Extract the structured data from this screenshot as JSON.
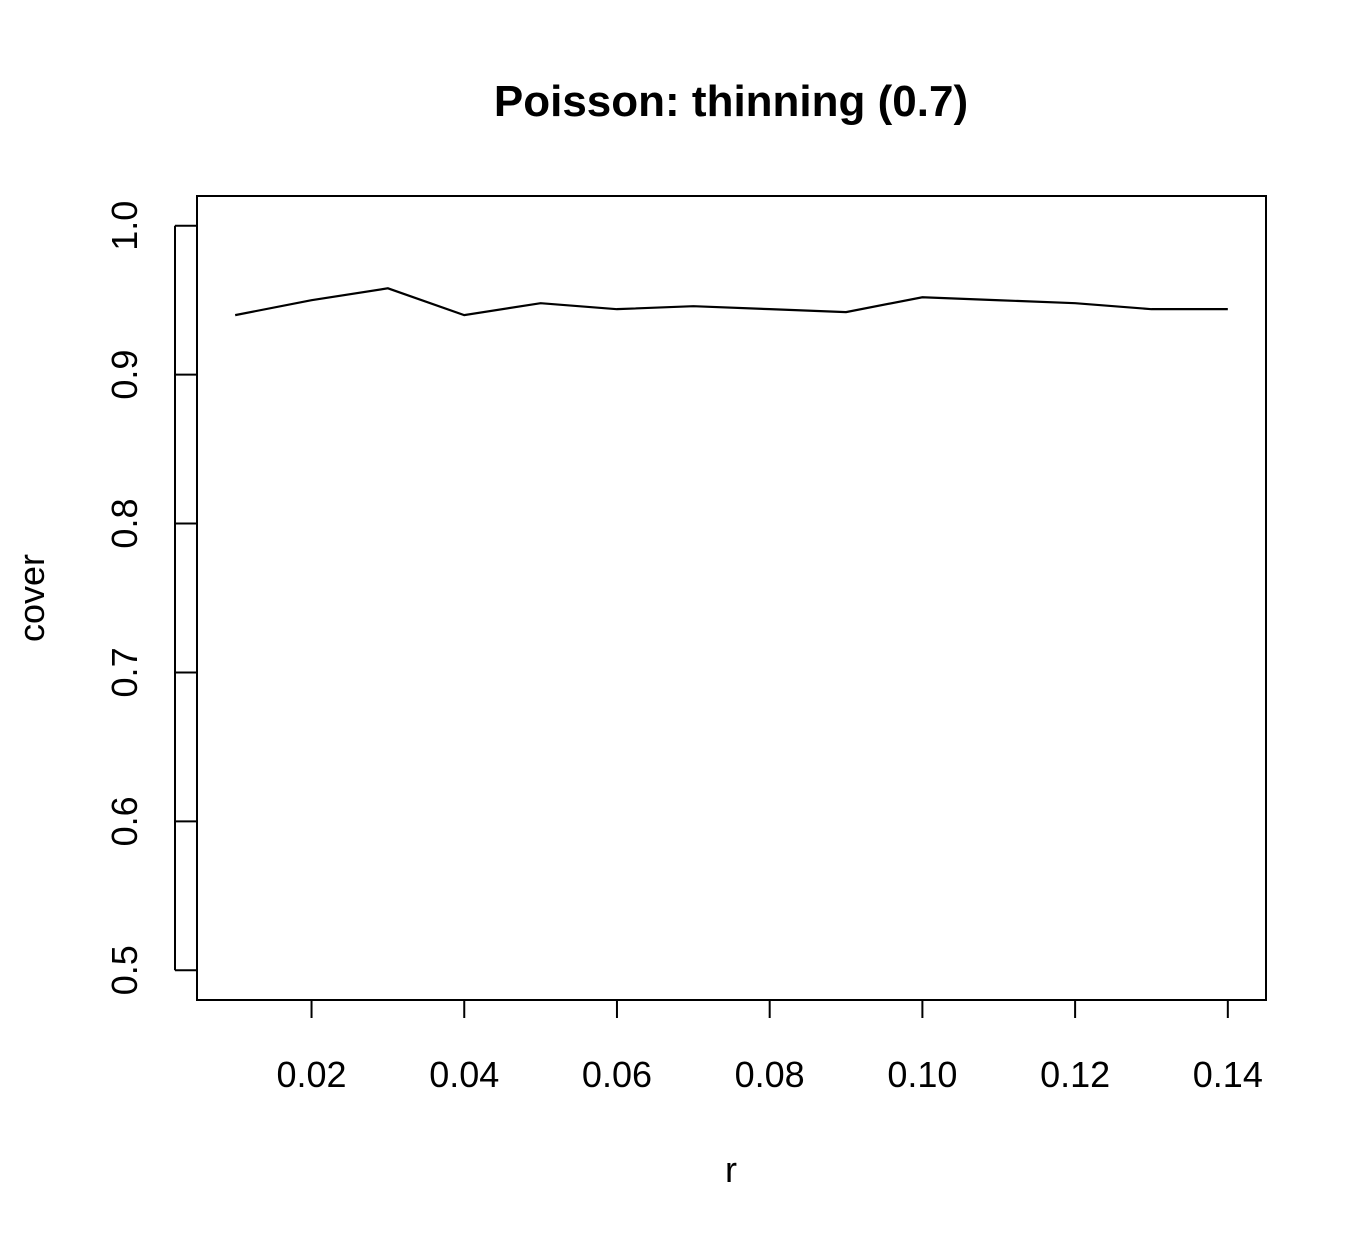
{
  "chart_data": {
    "type": "line",
    "title": "Poisson: thinning (0.7)",
    "xlabel": "r",
    "ylabel": "cover",
    "xlim": [
      0.005,
      0.145
    ],
    "ylim": [
      0.48,
      1.02
    ],
    "x_ticks": [
      0.02,
      0.04,
      0.06,
      0.08,
      0.1,
      0.12,
      0.14
    ],
    "x_tick_labels": [
      "0.02",
      "0.04",
      "0.06",
      "0.08",
      "0.10",
      "0.12",
      "0.14"
    ],
    "y_ticks": [
      0.5,
      0.6,
      0.7,
      0.8,
      0.9,
      1.0
    ],
    "y_tick_labels": [
      "0.5",
      "0.6",
      "0.7",
      "0.8",
      "0.9",
      "1.0"
    ],
    "grid": false,
    "series": [
      {
        "x": [
          0.01,
          0.02,
          0.03,
          0.04,
          0.05,
          0.06,
          0.07,
          0.08,
          0.09,
          0.1,
          0.11,
          0.12,
          0.13,
          0.14
        ],
        "values": [
          0.94,
          0.95,
          0.958,
          0.94,
          0.948,
          0.944,
          0.946,
          0.944,
          0.942,
          0.952,
          0.95,
          0.948,
          0.944,
          0.944
        ],
        "color": "#000000"
      }
    ]
  }
}
